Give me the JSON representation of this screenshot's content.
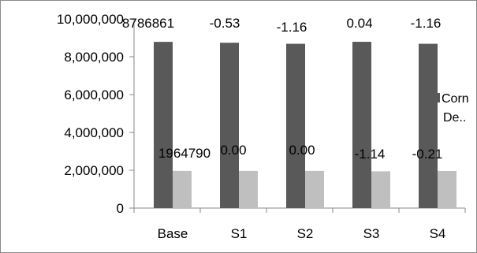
{
  "chart_data": {
    "type": "bar",
    "title": "",
    "xlabel": "",
    "ylabel": "",
    "ylim": [
      0,
      10000000
    ],
    "yticks": [
      0,
      2000000,
      4000000,
      6000000,
      8000000,
      10000000
    ],
    "ytick_labels": [
      "0",
      "2,000,000",
      "4,000,000",
      "6,000,000",
      "8,000,000",
      "10,000,000"
    ],
    "categories": [
      "Base",
      "S1",
      "S2",
      "S3",
      "S4"
    ],
    "series": [
      {
        "name": "Corn",
        "color": "#595959",
        "values": [
          8786861,
          8740000,
          8685000,
          8790000,
          8685000
        ],
        "labels": [
          "8786861",
          "-0.53",
          "-1.16",
          "0.04",
          "-1.16"
        ]
      },
      {
        "name": "De..",
        "color": "#bfbfbf",
        "values": [
          1964790,
          1964790,
          1964790,
          1942392,
          1960664
        ],
        "labels": [
          "1964790",
          "0.00",
          "0.00",
          "-1.14",
          "-0.21"
        ]
      }
    ],
    "grid": false,
    "legend": "right"
  }
}
